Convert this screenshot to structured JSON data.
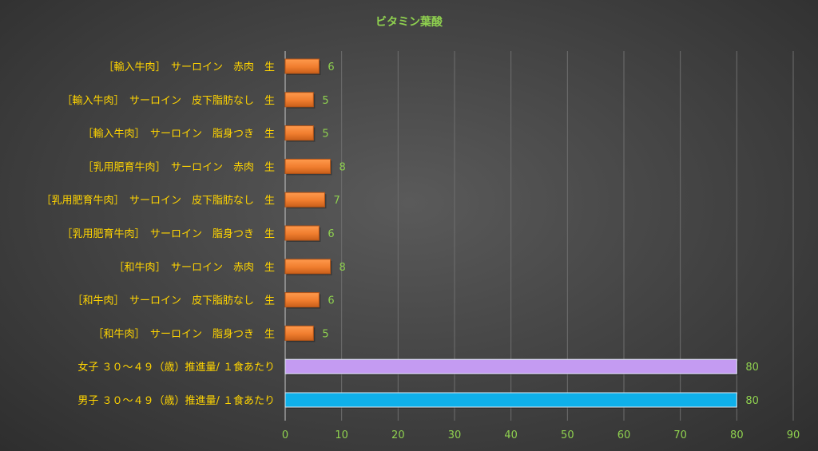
{
  "chart_data": {
    "type": "bar",
    "orientation": "horizontal",
    "title": "ビタミン葉酸",
    "categories": [
      "［輸入牛肉］　サーロイン　赤肉　生",
      "［輸入牛肉］　サーロイン　皮下脂肪なし　生",
      "［輸入牛肉］　サーロイン　脂身つき　生",
      "［乳用肥育牛肉］　サーロイン　赤肉　生",
      "［乳用肥育牛肉］　サーロイン　皮下脂肪なし　生",
      "［乳用肥育牛肉］　サーロイン　脂身つき　生",
      "［和牛肉］　サーロイン　赤肉　生",
      "［和牛肉］　サーロイン　皮下脂肪なし　生",
      "［和牛肉］　サーロイン　脂身つき　生",
      "女子 ３０～４９（歳）推進量/ １食あたり",
      "男子 ３０～４９（歳）推進量/ １食あたり"
    ],
    "values": [
      6,
      5,
      5,
      8,
      7,
      6,
      8,
      6,
      5,
      80,
      80
    ],
    "value_labels": [
      "6",
      "5",
      "5",
      "8",
      "7",
      "6",
      "8",
      "6",
      "5",
      "80",
      "80"
    ],
    "bar_colors": [
      "#f07d2e",
      "#f07d2e",
      "#f07d2e",
      "#f07d2e",
      "#f07d2e",
      "#f07d2e",
      "#f07d2e",
      "#f07d2e",
      "#f07d2e",
      "#c49bf2",
      "#0fb0ea"
    ],
    "xlim": [
      0,
      90
    ],
    "xticks": [
      "0",
      "10",
      "20",
      "30",
      "40",
      "50",
      "60",
      "70",
      "80",
      "90"
    ],
    "grid": true,
    "legend": "none",
    "colors": {
      "title": "#8fd14f",
      "category_labels": "#ffd400",
      "tick_labels": "#8fd14f",
      "value_labels": "#8fd14f",
      "gridlines": "#6e6e6e",
      "axis": "#c8c8c8"
    }
  }
}
